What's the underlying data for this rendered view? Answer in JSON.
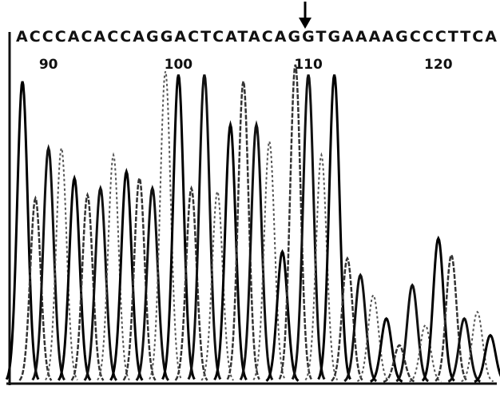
{
  "sequence": "ACCCACACCAGGACTCATACAGGTGAAAAGCCCTTCA",
  "position_labels": [
    90,
    100,
    110,
    120
  ],
  "peaks": [
    90,
    55,
    70,
    70,
    61,
    56,
    58,
    68,
    63,
    61,
    58,
    93,
    92,
    58,
    92,
    57,
    77,
    90,
    77,
    72,
    39,
    95,
    92,
    68,
    92,
    37,
    32,
    26,
    19,
    11,
    29,
    17,
    43,
    38,
    19,
    21,
    14
  ]
}
